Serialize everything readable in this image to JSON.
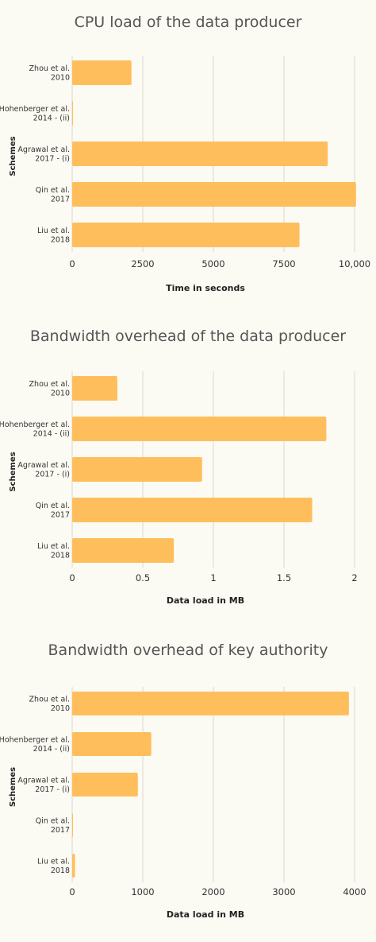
{
  "chart_data": [
    {
      "type": "bar",
      "orientation": "horizontal",
      "title": "CPU load of the data producer",
      "xlabel": "Time in seconds",
      "ylabel": "Schemes",
      "categories": [
        [
          "Zhou et al.",
          "2010"
        ],
        [
          "Hohenberger et al.",
          "2014 - (ii)"
        ],
        [
          "Agrawal et al.",
          "2017 - (i)"
        ],
        [
          "Qin et al.",
          "2017"
        ],
        [
          "Liu et al.",
          "2018"
        ]
      ],
      "values": [
        2100,
        30,
        9050,
        10050,
        8050
      ],
      "xlim": [
        0,
        10000
      ],
      "ticks": [
        0,
        2500,
        5000,
        7500,
        10000
      ],
      "tick_labels": [
        "0",
        "2500",
        "5000",
        "7500",
        "10,000"
      ],
      "grid": true,
      "bar_color": "#ffbe5c"
    },
    {
      "type": "bar",
      "orientation": "horizontal",
      "title": "Bandwidth overhead of the data producer",
      "xlabel": "Data load in MB",
      "ylabel": "Schemes",
      "categories": [
        [
          "Zhou et al.",
          "2010"
        ],
        [
          "Hohenberger et al.",
          "2014 - (ii)"
        ],
        [
          "Agrawal et al.",
          "2017 - (i)"
        ],
        [
          "Qin et al.",
          "2017"
        ],
        [
          "Liu et al.",
          "2018"
        ]
      ],
      "values": [
        0.32,
        1.8,
        0.92,
        1.7,
        0.72
      ],
      "xlim": [
        0,
        2
      ],
      "ticks": [
        0,
        0.5,
        1,
        1.5,
        2
      ],
      "tick_labels": [
        "0",
        "0.5",
        "1",
        "1.5",
        "2"
      ],
      "grid": true,
      "bar_color": "#ffbe5c"
    },
    {
      "type": "bar",
      "orientation": "horizontal",
      "title": "Bandwidth overhead of key authority",
      "xlabel": "Data load in MB",
      "ylabel": "Schemes",
      "categories": [
        [
          "Zhou et al.",
          "2010"
        ],
        [
          "Hohenberger et al.",
          "2014 - (ii)"
        ],
        [
          "Agrawal et al.",
          "2017 - (i)"
        ],
        [
          "Qin et al.",
          "2017"
        ],
        [
          "Liu et al.",
          "2018"
        ]
      ],
      "values": [
        3920,
        1120,
        930,
        10,
        40
      ],
      "xlim": [
        0,
        4000
      ],
      "ticks": [
        0,
        1000,
        2000,
        3000,
        4000
      ],
      "tick_labels": [
        "0",
        "1000",
        "2000",
        "3000",
        "4000"
      ],
      "grid": true,
      "bar_color": "#ffbe5c"
    }
  ]
}
